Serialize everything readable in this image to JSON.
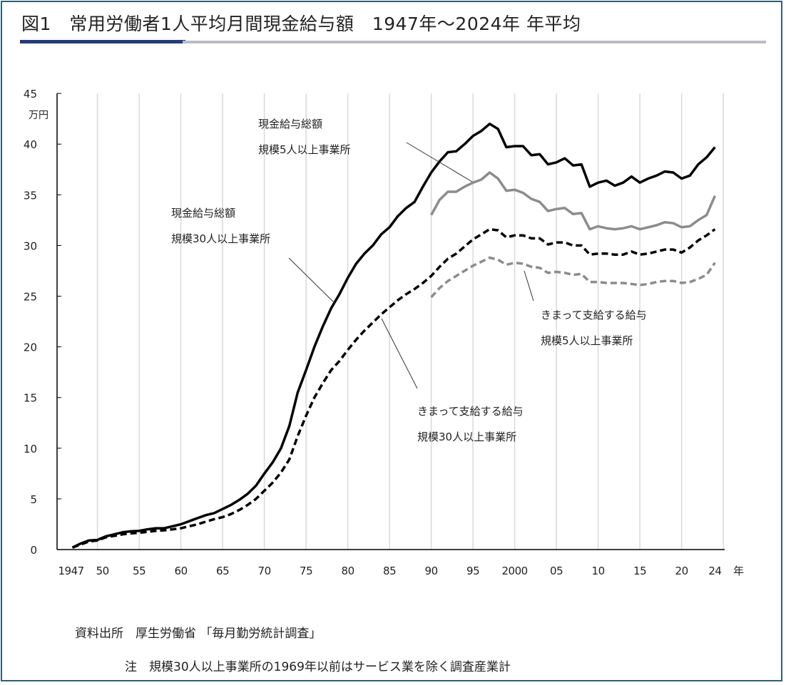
{
  "title": "図1　常用労働者1人平均月間現金給与額　1947年～2024年 年平均",
  "footer": {
    "source": "資料出所　厚生労働省 「毎月勤労統計調査」",
    "note": "注　規模30人以上事業所の1969年以前はサービス業を除く調査産業計"
  },
  "chart_data": {
    "type": "line",
    "title": "常用労働者1人平均月間現金給与額 1947年～2024年 年平均",
    "ylabel": "万円",
    "xlabel": "年",
    "ylim": [
      0,
      45
    ],
    "xlim": [
      1947,
      2024
    ],
    "yticks": [
      "0",
      "5",
      "10",
      "15",
      "20",
      "25",
      "30",
      "35",
      "40",
      "45"
    ],
    "xticks": [
      {
        "year": 1947,
        "label": "1947"
      },
      {
        "year": 1950,
        "label": "50"
      },
      {
        "year": 1955,
        "label": "55"
      },
      {
        "year": 1960,
        "label": "60"
      },
      {
        "year": 1965,
        "label": "65"
      },
      {
        "year": 1970,
        "label": "70"
      },
      {
        "year": 1975,
        "label": "75"
      },
      {
        "year": 1980,
        "label": "80"
      },
      {
        "year": 1985,
        "label": "85"
      },
      {
        "year": 1990,
        "label": "90"
      },
      {
        "year": 1995,
        "label": "95"
      },
      {
        "year": 2000,
        "label": "2000"
      },
      {
        "year": 2005,
        "label": "05"
      },
      {
        "year": 2010,
        "label": "10"
      },
      {
        "year": 2015,
        "label": "15"
      },
      {
        "year": 2020,
        "label": "20"
      },
      {
        "year": 2024,
        "label": "24"
      }
    ],
    "grid": "vertical every 5 years",
    "series": [
      {
        "name": "現金給与総額 規模30人以上事業所",
        "label_lines": [
          "現金給与総額",
          "規模30人以上事業所"
        ],
        "color": "#000000",
        "style": "solid",
        "start": 1947,
        "values": [
          0.2,
          0.6,
          0.9,
          0.95,
          1.3,
          1.5,
          1.7,
          1.8,
          1.85,
          2.0,
          2.1,
          2.1,
          2.3,
          2.5,
          2.8,
          3.1,
          3.4,
          3.6,
          4.0,
          4.4,
          4.9,
          5.5,
          6.3,
          7.5,
          8.6,
          10.0,
          12.2,
          15.5,
          17.7,
          20.0,
          22.0,
          23.8,
          25.2,
          26.8,
          28.2,
          29.2,
          30.0,
          31.1,
          31.8,
          32.9,
          33.7,
          34.3,
          35.8,
          37.2,
          38.3,
          39.2,
          39.3,
          40.0,
          40.8,
          41.3,
          42.0,
          41.5,
          39.7,
          39.8,
          39.8,
          38.9,
          39.0,
          38.0,
          38.2,
          38.6,
          37.9,
          38.0,
          35.8,
          36.2,
          36.4,
          35.9,
          36.2,
          36.8,
          36.2,
          36.6,
          36.9,
          37.3,
          37.2,
          36.6,
          36.9,
          38.0,
          38.7,
          39.7
        ]
      },
      {
        "name": "きまって支給する給与 規模30人以上事業所",
        "label_lines": [
          "きまって支給する給与",
          "規模30人以上事業所"
        ],
        "color": "#000000",
        "style": "dashed",
        "start": 1947,
        "values": [
          0.2,
          0.5,
          0.8,
          0.9,
          1.2,
          1.35,
          1.5,
          1.6,
          1.65,
          1.75,
          1.85,
          1.9,
          2.0,
          2.1,
          2.3,
          2.5,
          2.75,
          3.0,
          3.2,
          3.5,
          3.9,
          4.4,
          5.0,
          5.8,
          6.6,
          7.6,
          8.9,
          11.2,
          13.2,
          15.0,
          16.4,
          17.7,
          18.6,
          19.7,
          20.7,
          21.6,
          22.4,
          23.2,
          23.9,
          24.6,
          25.2,
          25.7,
          26.3,
          27.0,
          27.9,
          28.7,
          29.2,
          29.9,
          30.6,
          31.1,
          31.6,
          31.5,
          30.8,
          31.0,
          31.0,
          30.7,
          30.7,
          30.1,
          30.3,
          30.3,
          30.0,
          30.0,
          29.1,
          29.2,
          29.2,
          29.1,
          29.1,
          29.4,
          29.1,
          29.2,
          29.4,
          29.6,
          29.6,
          29.3,
          29.8,
          30.5,
          31.0,
          31.6
        ]
      },
      {
        "name": "現金給与総額 規模5人以上事業所",
        "label_lines": [
          "現金給与総額",
          "規模5人以上事業所"
        ],
        "color": "#8c8c8c",
        "style": "solid",
        "start": 1990,
        "values": [
          33.0,
          34.5,
          35.3,
          35.3,
          35.8,
          36.2,
          36.5,
          37.2,
          36.6,
          35.4,
          35.5,
          35.2,
          34.6,
          34.3,
          33.4,
          33.6,
          33.7,
          33.1,
          33.2,
          31.6,
          31.9,
          31.7,
          31.6,
          31.7,
          31.9,
          31.6,
          31.8,
          32.0,
          32.3,
          32.2,
          31.8,
          31.9,
          32.5,
          33.0,
          34.9
        ]
      },
      {
        "name": "きまって支給する給与 規模5人以上事業所",
        "label_lines": [
          "きまって支給する給与",
          "規模5人以上事業所"
        ],
        "color": "#8c8c8c",
        "style": "dashed",
        "start": 1990,
        "values": [
          24.9,
          25.8,
          26.5,
          27.0,
          27.5,
          28.0,
          28.4,
          28.8,
          28.6,
          28.1,
          28.3,
          28.2,
          27.9,
          27.8,
          27.3,
          27.4,
          27.3,
          27.1,
          27.2,
          26.4,
          26.4,
          26.3,
          26.3,
          26.3,
          26.2,
          26.1,
          26.2,
          26.4,
          26.5,
          26.5,
          26.3,
          26.4,
          26.7,
          27.1,
          28.3
        ]
      }
    ]
  }
}
